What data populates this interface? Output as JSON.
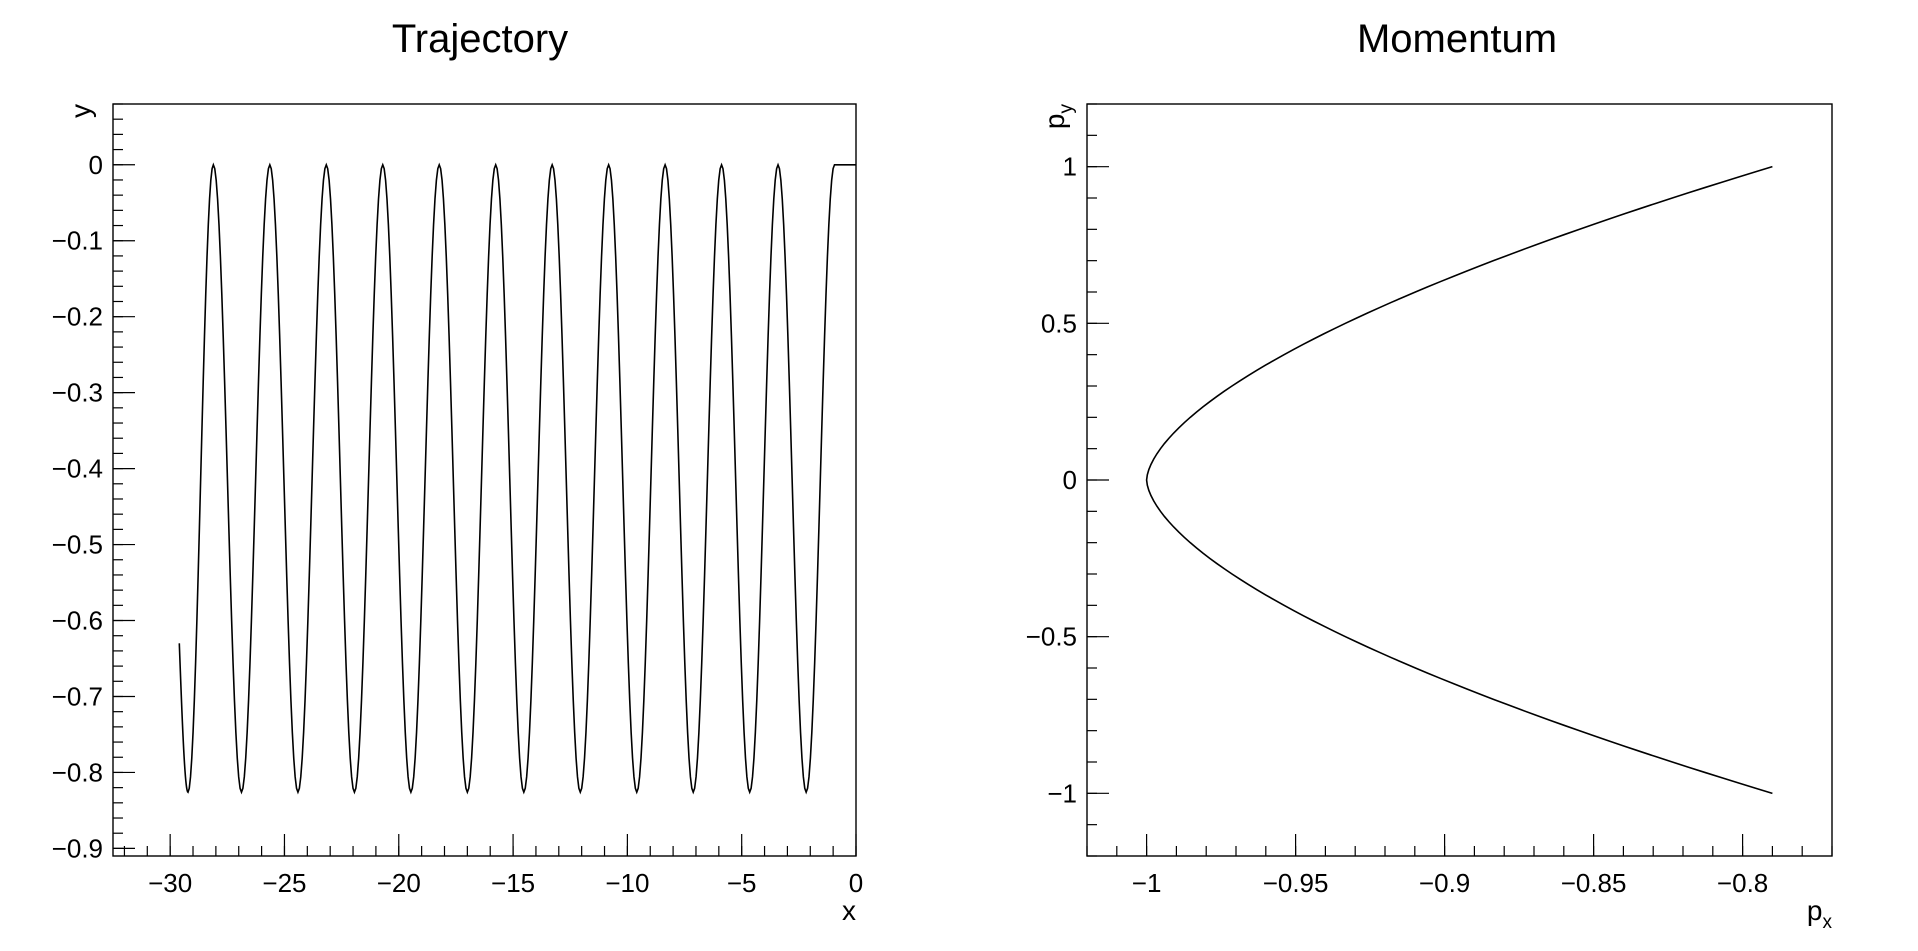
{
  "chart_data": [
    {
      "type": "line",
      "title": "Trajectory",
      "xlabel": "x",
      "ylabel": "y",
      "xlim": [
        -32.5,
        0
      ],
      "ylim": [
        -0.91,
        0.08
      ],
      "x_ticks": [
        -30,
        -25,
        -20,
        -15,
        -10,
        -5,
        0
      ],
      "x_tick_labels": [
        "−30",
        "−25",
        "−20",
        "−15",
        "−10",
        "−5",
        "0"
      ],
      "x_minor_step": 1,
      "y_ticks": [
        0,
        -0.1,
        -0.2,
        -0.3,
        -0.4,
        -0.5,
        -0.6,
        -0.7,
        -0.8,
        -0.9
      ],
      "y_tick_labels": [
        "0",
        "−0.1",
        "−0.2",
        "−0.3",
        "−0.4",
        "−0.5",
        "−0.6",
        "−0.7",
        "−0.8",
        "−0.9"
      ],
      "y_minor_step": 0.02,
      "grid": false,
      "line_color": "#000000",
      "series": [
        {
          "x_range": [
            -29.6,
            0
          ],
          "y_max": 0,
          "y_min": -0.826,
          "peak_x": [
            -28.11,
            -25.64,
            -23.17,
            -20.7,
            -18.23,
            -15.76,
            -13.29,
            -10.82,
            -8.35,
            -5.88,
            -3.41,
            -0.94,
            0
          ],
          "trough_x": [
            -29.22,
            -26.88,
            -24.41,
            -21.94,
            -19.47,
            -17.0,
            -14.53,
            -12.06,
            -9.59,
            -7.12,
            -4.65,
            -2.18
          ],
          "start_point": [
            -29.6,
            -0.63
          ],
          "end_point": [
            0,
            0
          ]
        }
      ]
    },
    {
      "type": "line",
      "title": "Momentum",
      "xlabel": "p",
      "xlabel_subscript": "x",
      "ylabel": "p",
      "ylabel_subscript": "y",
      "xlim": [
        -1.02,
        -0.77
      ],
      "ylim": [
        -1.2,
        1.2
      ],
      "x_ticks": [
        -1,
        -0.95,
        -0.9,
        -0.85,
        -0.8
      ],
      "x_tick_labels": [
        "−1",
        "−0.95",
        "−0.9",
        "−0.85",
        "−0.8"
      ],
      "x_minor_step": 0.01,
      "y_ticks": [
        1,
        0.5,
        0,
        -0.5,
        -1
      ],
      "y_tick_labels": [
        "1",
        "0.5",
        "0",
        "−0.5",
        "−1"
      ],
      "y_minor_step": 0.1,
      "grid": false,
      "line_color": "#000000",
      "series": [
        {
          "vertex": [
            -1.0,
            0.0
          ],
          "points": [
            [
              -0.79,
              1.0
            ],
            [
              -0.82,
              0.87
            ],
            [
              -0.85,
              0.73
            ],
            [
              -0.9,
              0.71
            ],
            [
              -0.95,
              0.42
            ],
            [
              -0.98,
              0.22
            ],
            [
              -1.0,
              0.0
            ],
            [
              -0.98,
              -0.22
            ],
            [
              -0.95,
              -0.42
            ],
            [
              -0.9,
              -0.71
            ],
            [
              -0.85,
              -0.83
            ],
            [
              -0.82,
              -0.9
            ],
            [
              -0.79,
              -1.0
            ]
          ]
        }
      ]
    }
  ]
}
